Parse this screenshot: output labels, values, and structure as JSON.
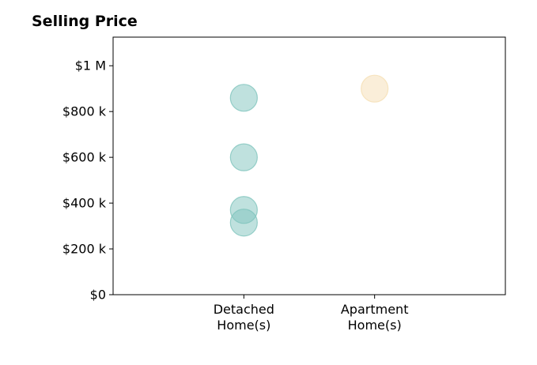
{
  "chart_data": {
    "type": "scatter",
    "title": "Selling Price",
    "xlabel": "",
    "ylabel": "",
    "categories": [
      [
        "Detached",
        "Home(s)"
      ],
      [
        "Apartment",
        "Home(s)"
      ]
    ],
    "xlim": [
      -1,
      2
    ],
    "ylim": [
      0,
      1125000
    ],
    "yticks": [
      {
        "value": 0,
        "label": "$0"
      },
      {
        "value": 200000,
        "label": "$200 k"
      },
      {
        "value": 400000,
        "label": "$400 k"
      },
      {
        "value": 600000,
        "label": "$600 k"
      },
      {
        "value": 800000,
        "label": "$800 k"
      },
      {
        "value": 1000000,
        "label": "$1 M"
      }
    ],
    "grid": false,
    "legend": "none",
    "series": [
      {
        "category_index": 0,
        "color": "#7fc4bd",
        "values": [
          860000,
          600000,
          370000,
          315000
        ]
      },
      {
        "category_index": 1,
        "color": "#f5deb3",
        "values": [
          900000
        ]
      }
    ]
  }
}
